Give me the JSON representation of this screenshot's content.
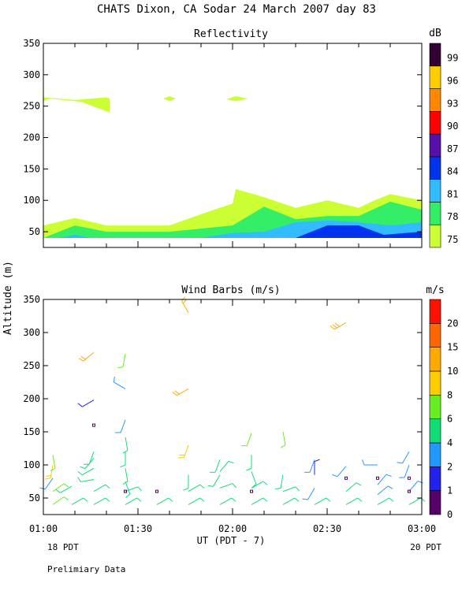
{
  "title": "CHATS Dixon, CA  Sodar  24 March 2007  day  83",
  "ylabel": "Altitude (m)",
  "xlabel": "UT  (PDT - 7)",
  "left_footer": "18 PDT",
  "right_footer": "20 PDT",
  "note": "Prelimiary Data",
  "x_ticks": [
    "01:00",
    "01:30",
    "02:00",
    "02:30",
    "03:00"
  ],
  "chart_data": [
    {
      "type": "area",
      "title": "Reflectivity",
      "xlim": [
        0,
        120
      ],
      "ylim": [
        25,
        350
      ],
      "y_ticks": [
        50,
        100,
        150,
        200,
        250,
        300,
        350
      ],
      "colorbar": {
        "label": "dB",
        "ticks": [
          "75",
          "78",
          "81",
          "84",
          "87",
          "90",
          "93",
          "96",
          "99"
        ],
        "colors": [
          "#ccff33",
          "#33ee66",
          "#33bbff",
          "#0033ee",
          "#5511aa",
          "#ff0000",
          "#ff8800",
          "#ffcc00",
          "#330033"
        ]
      },
      "series": [
        {
          "name": "75",
          "color": "#ccff33",
          "x": [
            0,
            10,
            20,
            30,
            40,
            50,
            60,
            61,
            70,
            80,
            90,
            100,
            105,
            110,
            120
          ],
          "top": [
            60,
            72,
            60,
            60,
            60,
            78,
            95,
            118,
            105,
            88,
            100,
            88,
            100,
            110,
            100
          ],
          "bottom": [
            40,
            40,
            40,
            40,
            40,
            40,
            40,
            40,
            40,
            40,
            40,
            40,
            40,
            40,
            40
          ]
        },
        {
          "name": "78",
          "color": "#33ee66",
          "x": [
            0,
            10,
            20,
            30,
            40,
            50,
            60,
            70,
            80,
            90,
            100,
            110,
            120
          ],
          "top": [
            40,
            60,
            50,
            50,
            50,
            55,
            60,
            90,
            70,
            75,
            75,
            98,
            85
          ],
          "bottom": [
            40,
            40,
            40,
            40,
            40,
            40,
            40,
            40,
            40,
            40,
            40,
            40,
            40
          ]
        },
        {
          "name": "81",
          "color": "#33bbff",
          "x": [
            0,
            5,
            10,
            15,
            30,
            50,
            60,
            70,
            80,
            90,
            100,
            110,
            120
          ],
          "top": [
            40,
            40,
            45,
            40,
            40,
            40,
            48,
            50,
            65,
            68,
            65,
            60,
            65
          ],
          "bottom": [
            40,
            40,
            40,
            40,
            40,
            40,
            40,
            40,
            40,
            40,
            40,
            40,
            40
          ]
        },
        {
          "name": "84",
          "color": "#0033ee",
          "x": [
            80,
            90,
            100,
            108,
            115,
            120
          ],
          "top": [
            40,
            60,
            60,
            45,
            48,
            50
          ],
          "bottom": [
            40,
            40,
            40,
            40,
            40,
            40
          ]
        }
      ],
      "patches": [
        {
          "color": "#ccff33",
          "points": [
            [
              0,
              258
            ],
            [
              0,
              264
            ],
            [
              10,
              260
            ],
            [
              20,
              264
            ],
            [
              21,
              262
            ],
            [
              21,
              240
            ],
            [
              12,
              257
            ],
            [
              2,
              262
            ]
          ]
        },
        {
          "color": "#ccff33",
          "points": [
            [
              38,
              262
            ],
            [
              40,
              266
            ],
            [
              42,
              262
            ],
            [
              40,
              258
            ]
          ]
        },
        {
          "color": "#ccff33",
          "points": [
            [
              58,
              261
            ],
            [
              61,
              266
            ],
            [
              65,
              262
            ],
            [
              61,
              258
            ]
          ]
        }
      ]
    },
    {
      "type": "scatter",
      "title": "Wind Barbs (m/s)",
      "xlim": [
        0,
        120
      ],
      "ylim": [
        25,
        350
      ],
      "y_ticks": [
        50,
        100,
        150,
        200,
        250,
        300,
        350
      ],
      "colorbar": {
        "label": "m/s",
        "ticks": [
          "0",
          "1",
          "2",
          "4",
          "6",
          "8",
          "10",
          "15",
          "20"
        ],
        "colors": [
          "#550066",
          "#2222ee",
          "#2299ff",
          "#11dd77",
          "#66ee22",
          "#ffcc00",
          "#ffaa00",
          "#ff6600",
          "#ff1100"
        ]
      },
      "barbs": [
        [
          3,
          40,
          6,
          55
        ],
        [
          3,
          60,
          6,
          55
        ],
        [
          3,
          80,
          3,
          215
        ],
        [
          3,
          100,
          8,
          190
        ],
        [
          3,
          115,
          6,
          170
        ],
        [
          9,
          40,
          5,
          60
        ],
        [
          9,
          68,
          5,
          240
        ],
        [
          16,
          40,
          5,
          60
        ],
        [
          16,
          60,
          5,
          60
        ],
        [
          16,
          78,
          5,
          260
        ],
        [
          16,
          95,
          5,
          240
        ],
        [
          16,
          110,
          5,
          220
        ],
        [
          16,
          120,
          5,
          200
        ],
        [
          16,
          198,
          1,
          240
        ],
        [
          16,
          270,
          10,
          230
        ],
        [
          26,
          40,
          5,
          60
        ],
        [
          26,
          60,
          5,
          70
        ],
        [
          26,
          75,
          4,
          160
        ],
        [
          26,
          95,
          4,
          170
        ],
        [
          26,
          120,
          4,
          180
        ],
        [
          26,
          142,
          4,
          170
        ],
        [
          26,
          168,
          2,
          200
        ],
        [
          26,
          215,
          2,
          300
        ],
        [
          26,
          268,
          6,
          190
        ],
        [
          36,
          40,
          4,
          60
        ],
        [
          46,
          40,
          5,
          60
        ],
        [
          46,
          60,
          5,
          60
        ],
        [
          46,
          85,
          4,
          180
        ],
        [
          46,
          130,
          8,
          200
        ],
        [
          46,
          215,
          10,
          240
        ],
        [
          46,
          330,
          10,
          330
        ],
        [
          56,
          40,
          5,
          60
        ],
        [
          56,
          65,
          5,
          70
        ],
        [
          56,
          85,
          4,
          210
        ],
        [
          56,
          108,
          4,
          200
        ],
        [
          56,
          90,
          4,
          40
        ],
        [
          66,
          40,
          5,
          60
        ],
        [
          66,
          65,
          5,
          60
        ],
        [
          66,
          90,
          4,
          160
        ],
        [
          66,
          115,
          4,
          180
        ],
        [
          66,
          148,
          6,
          200
        ],
        [
          76,
          40,
          5,
          60
        ],
        [
          76,
          60,
          4,
          70
        ],
        [
          76,
          85,
          4,
          190
        ],
        [
          76,
          150,
          6,
          170
        ],
        [
          86,
          40,
          5,
          60
        ],
        [
          86,
          65,
          3,
          210
        ],
        [
          86,
          85,
          1,
          0
        ],
        [
          86,
          108,
          3,
          200
        ],
        [
          96,
          40,
          5,
          60
        ],
        [
          96,
          60,
          4,
          50
        ],
        [
          96,
          98,
          3,
          220
        ],
        [
          96,
          315,
          13,
          240
        ],
        [
          106,
          40,
          5,
          60
        ],
        [
          106,
          55,
          3,
          50
        ],
        [
          106,
          70,
          3,
          40
        ],
        [
          106,
          100,
          3,
          270
        ],
        [
          116,
          40,
          5,
          60
        ],
        [
          116,
          60,
          3,
          40
        ],
        [
          116,
          100,
          3,
          200
        ],
        [
          116,
          120,
          3,
          210
        ]
      ],
      "calm": [
        [
          16,
          160
        ],
        [
          26,
          60
        ],
        [
          36,
          60
        ],
        [
          66,
          60
        ],
        [
          96,
          80
        ],
        [
          106,
          80
        ],
        [
          116,
          60
        ],
        [
          116,
          80
        ]
      ]
    }
  ]
}
